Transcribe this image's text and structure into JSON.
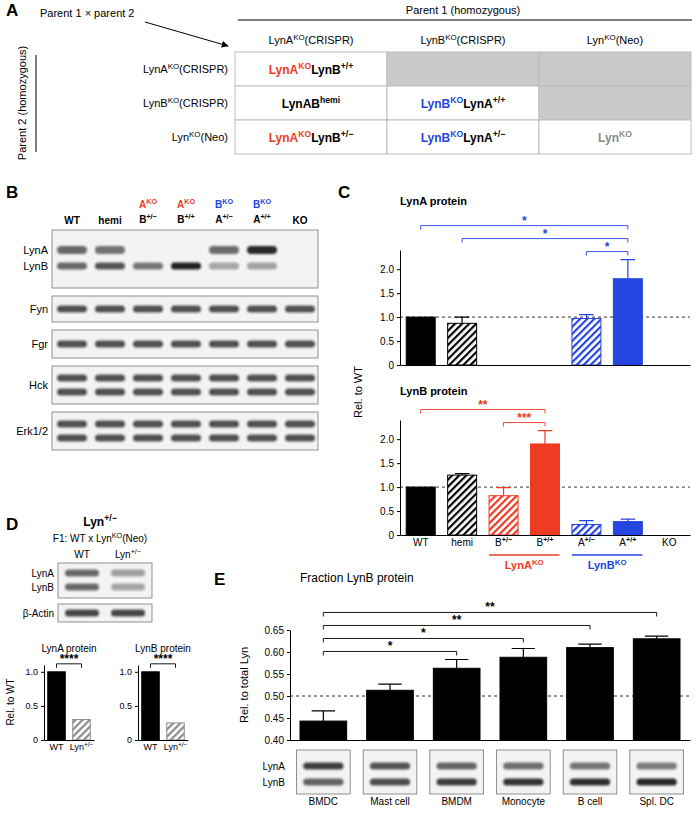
{
  "panels": [
    "A",
    "B",
    "C",
    "D",
    "E"
  ],
  "panel_a": {
    "cross_label": "Parent 1 × parent 2",
    "parent1_label": "Parent 1 (homozygous)",
    "parent2_label": "Parent 2 (homozygous)",
    "columns": [
      [
        {
          "text": "LynA"
        },
        {
          "text": "KO",
          "sup": true
        },
        {
          "text": "(CRISPR)"
        }
      ],
      [
        {
          "text": "LynB"
        },
        {
          "text": "KO",
          "sup": true
        },
        {
          "text": "(CRISPR)"
        }
      ],
      [
        {
          "text": "Lyn"
        },
        {
          "text": "KO",
          "sup": true
        },
        {
          "text": "(Neo)"
        }
      ]
    ],
    "rows": [
      {
        "label": [
          {
            "text": "LynA"
          },
          {
            "text": "KO",
            "sup": true
          },
          {
            "text": "(CRISPR)"
          }
        ],
        "cells": [
          [
            {
              "text": "LynA",
              "color": "#ee3b24"
            },
            {
              "text": "KO",
              "sup": true,
              "color": "#ee3b24"
            },
            {
              "text": "LynB"
            },
            {
              "text": "+/+",
              "sup": true
            }
          ],
          null,
          null
        ]
      },
      {
        "label": [
          {
            "text": "LynB"
          },
          {
            "text": "KO",
            "sup": true
          },
          {
            "text": "(CRISPR)"
          }
        ],
        "cells": [
          [
            {
              "text": "LynAB"
            },
            {
              "text": "hemi",
              "sup": true
            }
          ],
          [
            {
              "text": "LynB",
              "color": "#2445e0"
            },
            {
              "text": "KO",
              "sup": true,
              "color": "#2445e0"
            },
            {
              "text": "LynA"
            },
            {
              "text": "+/+",
              "sup": true
            }
          ],
          null
        ]
      },
      {
        "label": [
          {
            "text": "Lyn"
          },
          {
            "text": "KO",
            "sup": true
          },
          {
            "text": "(Neo)"
          }
        ],
        "cells": [
          [
            {
              "text": "LynA",
              "color": "#ee3b24"
            },
            {
              "text": "KO",
              "sup": true,
              "color": "#ee3b24"
            },
            {
              "text": "LynB"
            },
            {
              "text": "+/−",
              "sup": true
            }
          ],
          [
            {
              "text": "LynB",
              "color": "#2445e0"
            },
            {
              "text": "KO",
              "sup": true,
              "color": "#2445e0"
            },
            {
              "text": "LynA"
            },
            {
              "text": "+/−",
              "sup": true
            }
          ],
          [
            {
              "text": "Lyn",
              "color": "#8a8a8a"
            },
            {
              "text": "KO",
              "sup": true,
              "color": "#8a8a8a"
            }
          ]
        ]
      }
    ]
  },
  "panel_b": {
    "lanes": [
      [
        "WT"
      ],
      [
        "hemi"
      ],
      [
        [
          {
            "text": "A",
            "color": "#ee3b24"
          },
          {
            "text": "KO",
            "sup": true,
            "color": "#ee3b24"
          }
        ],
        [
          {
            "text": "B"
          },
          {
            "text": "+/−",
            "sup": true
          }
        ]
      ],
      [
        [
          {
            "text": "A",
            "color": "#ee3b24"
          },
          {
            "text": "KO",
            "sup": true,
            "color": "#ee3b24"
          }
        ],
        [
          {
            "text": "B"
          },
          {
            "text": "+/+",
            "sup": true
          }
        ]
      ],
      [
        [
          {
            "text": "B",
            "color": "#2445e0"
          },
          {
            "text": "KO",
            "sup": true,
            "color": "#2445e0"
          }
        ],
        [
          {
            "text": "A"
          },
          {
            "text": "+/−",
            "sup": true
          }
        ]
      ],
      [
        [
          {
            "text": "B",
            "color": "#2445e0"
          },
          {
            "text": "KO",
            "sup": true,
            "color": "#2445e0"
          }
        ],
        [
          {
            "text": "A"
          },
          {
            "text": "+/+",
            "sup": true
          }
        ]
      ],
      [
        "KO"
      ]
    ],
    "blots": [
      {
        "labels": [
          "LynA",
          "LynB"
        ]
      },
      {
        "labels": [
          "Fyn"
        ]
      },
      {
        "labels": [
          "Fgr"
        ]
      },
      {
        "labels": [
          "Hck"
        ]
      },
      {
        "labels": [
          "Erk1/2"
        ]
      }
    ]
  },
  "panel_d": {
    "title": [
      {
        "text": "Lyn"
      },
      {
        "text": "+/−",
        "sup": true
      }
    ],
    "subtitle": [
      {
        "text": "F1: WT x Lyn"
      },
      {
        "text": "KO",
        "sup": true
      },
      {
        "text": "(Neo)"
      }
    ],
    "lanes": [
      "WT",
      [
        {
          "text": "Lyn"
        },
        {
          "text": "+/−",
          "sup": true
        }
      ]
    ],
    "blot_labels": [
      "LynA",
      "LynB",
      "β-Actin"
    ]
  },
  "panel_e": {
    "blot_labels": [
      "LynA",
      "LynB"
    ]
  },
  "chart_data": [
    {
      "type": "bar",
      "title": "LynA protein",
      "y_label": "Rel. to WT",
      "categories": [
        "WT",
        "hemi",
        [
          {
            "text": "B"
          },
          {
            "text": "+/−",
            "sup": true,
            "bold": true
          }
        ],
        [
          {
            "text": "B"
          },
          {
            "text": "+/+",
            "sup": true,
            "bold": true
          }
        ],
        [
          {
            "text": "A"
          },
          {
            "text": "+/−",
            "sup": true,
            "bold": true
          }
        ],
        [
          {
            "text": "A"
          },
          {
            "text": "+/+",
            "sup": true,
            "bold": true
          }
        ],
        "KO"
      ],
      "values": [
        1.0,
        0.87,
        0,
        0,
        0.97,
        1.8,
        0
      ],
      "errors": [
        0,
        0.13,
        0,
        0,
        0.08,
        0.4,
        0
      ],
      "colors": [
        "#000000",
        "#000000",
        "#ee3b24",
        "#ee3b24",
        "#2445e0",
        "#2445e0",
        "#808080"
      ],
      "ylim": [
        0,
        2.4
      ],
      "yticks": [
        0,
        0.5,
        {
          "value": 1,
          "label": "1.0"
        },
        1.5,
        {
          "value": 2,
          "label": "2.0"
        }
      ],
      "reference": 1,
      "tick_labels": "y",
      "significance": [
        {
          "from": 4,
          "to": 5,
          "label": "*",
          "color": "#2445e0"
        },
        {
          "from": 1,
          "to": 5,
          "label": "*",
          "color": "#2445e0"
        },
        {
          "from": 0,
          "to": 5,
          "label": "*",
          "color": "#2445e0"
        }
      ]
    },
    {
      "type": "bar",
      "title": "LynB protein",
      "categories": [
        "WT",
        "hemi",
        [
          {
            "text": "B"
          },
          {
            "text": "+/−",
            "sup": true,
            "bold": true
          }
        ],
        [
          {
            "text": "B"
          },
          {
            "text": "+/+",
            "sup": true,
            "bold": true
          }
        ],
        [
          {
            "text": "A"
          },
          {
            "text": "+/−",
            "sup": true,
            "bold": true
          }
        ],
        [
          {
            "text": "A"
          },
          {
            "text": "+/+",
            "sup": true,
            "bold": true
          }
        ],
        "KO"
      ],
      "values": [
        1.0,
        1.25,
        0.82,
        1.9,
        0.22,
        0.28,
        0
      ],
      "errors": [
        0,
        0.03,
        0.17,
        0.28,
        0.08,
        0.05,
        0
      ],
      "colors": [
        "#000000",
        "#000000",
        "#ee3b24",
        "#ee3b24",
        "#2445e0",
        "#2445e0",
        "#808080"
      ],
      "ylim": [
        0,
        2.4
      ],
      "yticks": [
        0,
        0.5,
        {
          "value": 1,
          "label": "1.0"
        },
        1.5,
        {
          "value": 2,
          "label": "2.0"
        }
      ],
      "reference": 1,
      "groups": [
        {
          "label": [
            {
              "text": "LynA"
            },
            {
              "text": "KO",
              "sup": true
            }
          ],
          "color": "#ee3b24",
          "categories": [
            2,
            3
          ]
        },
        {
          "label": [
            {
              "text": "LynB"
            },
            {
              "text": "KO",
              "sup": true
            }
          ],
          "color": "#2445e0",
          "categories": [
            4,
            5
          ]
        }
      ],
      "significance": [
        {
          "from": 2,
          "to": 3,
          "label": "***",
          "color": "#ee3b24"
        },
        {
          "from": 0,
          "to": 3,
          "label": "**",
          "color": "#ee3b24"
        }
      ]
    },
    {
      "type": "bar",
      "title": "LynA protein",
      "y_label": "Rel. to WT",
      "categories": [
        "WT",
        [
          {
            "text": "Lyn"
          },
          {
            "text": "+/−",
            "sup": true
          }
        ]
      ],
      "values": [
        1.0,
        0.3
      ],
      "colors": [
        "#000000",
        "#8c8c8c"
      ],
      "ylim": [
        0,
        1.1
      ],
      "yticks": [
        0,
        0.5,
        {
          "value": 1,
          "label": "1.0"
        }
      ],
      "significance": [
        {
          "from": 0,
          "to": 1,
          "label": "****",
          "color": "#000000"
        }
      ]
    },
    {
      "type": "bar",
      "title": "LynB protein",
      "categories": [
        "WT",
        [
          {
            "text": "Lyn"
          },
          {
            "text": "+/−",
            "sup": true
          }
        ]
      ],
      "values": [
        1.0,
        0.25
      ],
      "colors": [
        "#000000",
        "#8c8c8c"
      ],
      "ylim": [
        0,
        1.1
      ],
      "yticks": [
        0,
        0.5,
        {
          "value": 1,
          "label": "1.0"
        }
      ],
      "significance": [
        {
          "from": 0,
          "to": 1,
          "label": "****",
          "color": "#000000"
        }
      ]
    },
    {
      "type": "bar",
      "title": "Fraction LynB protein",
      "y_label": "Rel. to total Lyn",
      "categories": [
        "BMDC",
        "Mast cell",
        "BMDM",
        "Monocyte",
        "B cell",
        "Spl. DC"
      ],
      "values": [
        0.443,
        0.513,
        0.563,
        0.588,
        0.61,
        0.63
      ],
      "errors": [
        0.023,
        0.014,
        0.02,
        0.02,
        0.008,
        0.006
      ],
      "color": "#000000",
      "ylim": [
        0.4,
        0.65
      ],
      "yticks": [
        {
          "value": 0.4,
          "label": "0.40"
        },
        0.45,
        {
          "value": 0.5,
          "label": "0.50"
        },
        0.55,
        {
          "value": 0.6,
          "label": "0.60"
        },
        0.65
      ],
      "reference": 0.5,
      "significance": [
        {
          "from": 0,
          "to": 2,
          "label": "*",
          "color": "#000000"
        },
        {
          "from": 0,
          "to": 3,
          "label": "*",
          "color": "#000000"
        },
        {
          "from": 0,
          "to": 4,
          "label": "**",
          "color": "#000000"
        },
        {
          "from": 0,
          "to": 5,
          "label": "**",
          "color": "#000000"
        }
      ]
    }
  ]
}
